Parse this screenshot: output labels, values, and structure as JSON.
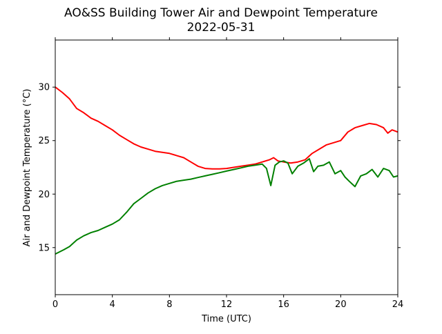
{
  "chart_data": {
    "type": "line",
    "title": "AO&SS Building Tower Air and Dewpoint Temperature",
    "subtitle": "2022-05-31",
    "xlabel": "Time (UTC)",
    "ylabel": "Air and Dewpoint Temperature (°C)",
    "xlim": [
      0,
      24
    ],
    "ylim": [
      10.6,
      34.4
    ],
    "xticks": [
      0,
      4,
      8,
      12,
      16,
      20,
      24
    ],
    "yticks": [
      15,
      20,
      25,
      30
    ],
    "grid": false,
    "series": [
      {
        "color": "#ff0000",
        "x": [
          0,
          0.5,
          1,
          1.5,
          2,
          2.5,
          3,
          3.5,
          4,
          4.5,
          5,
          5.5,
          6,
          6.5,
          7,
          7.5,
          8,
          8.5,
          9,
          9.5,
          10,
          10.5,
          11,
          11.5,
          12,
          12.5,
          13,
          13.5,
          14,
          14.5,
          15,
          15.3,
          15.6,
          16,
          16.5,
          17,
          17.5,
          18,
          18.5,
          19,
          19.5,
          20,
          20.5,
          21,
          21.5,
          22,
          22.5,
          23,
          23.3,
          23.6,
          24
        ],
        "y": [
          30.0,
          29.5,
          28.9,
          28.0,
          27.6,
          27.1,
          26.8,
          26.4,
          26.0,
          25.5,
          25.1,
          24.7,
          24.4,
          24.2,
          24.0,
          23.9,
          23.8,
          23.6,
          23.4,
          23.0,
          22.6,
          22.4,
          22.35,
          22.35,
          22.4,
          22.5,
          22.6,
          22.7,
          22.8,
          23.0,
          23.2,
          23.4,
          23.1,
          23.0,
          22.9,
          23.0,
          23.2,
          23.8,
          24.2,
          24.6,
          24.8,
          25.0,
          25.8,
          26.2,
          26.4,
          26.6,
          26.5,
          26.2,
          25.7,
          26.0,
          25.8
        ]
      },
      {
        "color": "#008000",
        "x": [
          0,
          0.3,
          0.6,
          1,
          1.5,
          2,
          2.5,
          3,
          3.5,
          4,
          4.5,
          5,
          5.5,
          6,
          6.5,
          7,
          7.5,
          8,
          8.5,
          9,
          9.5,
          10,
          10.5,
          11,
          11.5,
          12,
          12.5,
          13,
          13.5,
          14,
          14.5,
          14.8,
          15.1,
          15.4,
          15.7,
          16,
          16.3,
          16.6,
          17,
          17.4,
          17.8,
          18.1,
          18.4,
          18.8,
          19.2,
          19.6,
          20,
          20.3,
          20.6,
          21,
          21.4,
          21.8,
          22.2,
          22.6,
          23,
          23.4,
          23.7,
          24
        ],
        "y": [
          14.4,
          14.6,
          14.8,
          15.1,
          15.7,
          16.1,
          16.4,
          16.6,
          16.9,
          17.2,
          17.6,
          18.3,
          19.1,
          19.6,
          20.1,
          20.5,
          20.8,
          21.0,
          21.2,
          21.3,
          21.4,
          21.55,
          21.7,
          21.85,
          22.0,
          22.15,
          22.3,
          22.45,
          22.6,
          22.7,
          22.8,
          22.4,
          20.8,
          22.7,
          23.0,
          23.1,
          22.9,
          21.9,
          22.6,
          22.9,
          23.3,
          22.1,
          22.6,
          22.7,
          23.0,
          21.9,
          22.2,
          21.6,
          21.2,
          20.7,
          21.7,
          21.9,
          22.3,
          21.6,
          22.4,
          22.2,
          21.6,
          21.7
        ]
      }
    ]
  }
}
